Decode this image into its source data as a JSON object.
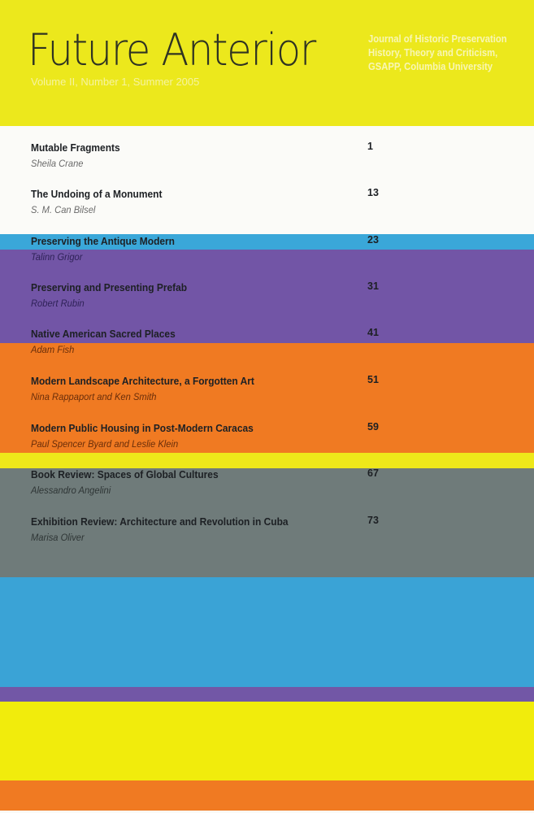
{
  "cover": {
    "title": "Future Anterior",
    "issue": "Volume II, Number 1, Summer 2005",
    "tagline": [
      "Journal of Historic Preservation",
      "History, Theory and Criticism,",
      "GSAPP, Columbia University"
    ]
  },
  "colors": {
    "yellow": "#ece81c",
    "white": "#fbfbf8",
    "cyan": "#3aa7d9",
    "purple": "#7255a6",
    "orange": "#f07a22",
    "gray": "#6f7b7a"
  },
  "contents": [
    {
      "title": "Mutable Fragments",
      "author": "Sheila Crane",
      "page": "1",
      "author_color": "#6b6b6b"
    },
    {
      "title": "The Undoing of a Monument",
      "author": "S. M. Can Bilsel",
      "page": "13",
      "author_color": "#6b6b6b"
    },
    {
      "title": "Preserving the Antique Modern",
      "author": "Talinn Grigor",
      "page": "23",
      "author_color": "#2f2258"
    },
    {
      "title": "Preserving and Presenting Prefab",
      "author": "Robert Rubin",
      "page": "31",
      "author_color": "#2f2258"
    },
    {
      "title": "Native American Sacred Places",
      "author": "Adam Fish",
      "page": "41",
      "author_color": "#6a2e0a"
    },
    {
      "title": "Modern Landscape Architecture, a Forgotten Art",
      "author": "Nina Rappaport and Ken Smith",
      "page": "51",
      "author_color": "#6a2e0a"
    },
    {
      "title": "Modern Public Housing in Post-Modern Caracas",
      "author": "Paul Spencer Byard and Leslie Klein",
      "page": "59",
      "author_color": "#6a2e0a"
    },
    {
      "title": "Book Review: Spaces of Global Cultures",
      "author": "Alessandro Angelini",
      "page": "67",
      "author_color": "#2e3535"
    },
    {
      "title": "Exhibition Review: Architecture and Revolution in Cuba",
      "author": "Marisa Oliver",
      "page": "73",
      "author_color": "#2e3535"
    }
  ]
}
